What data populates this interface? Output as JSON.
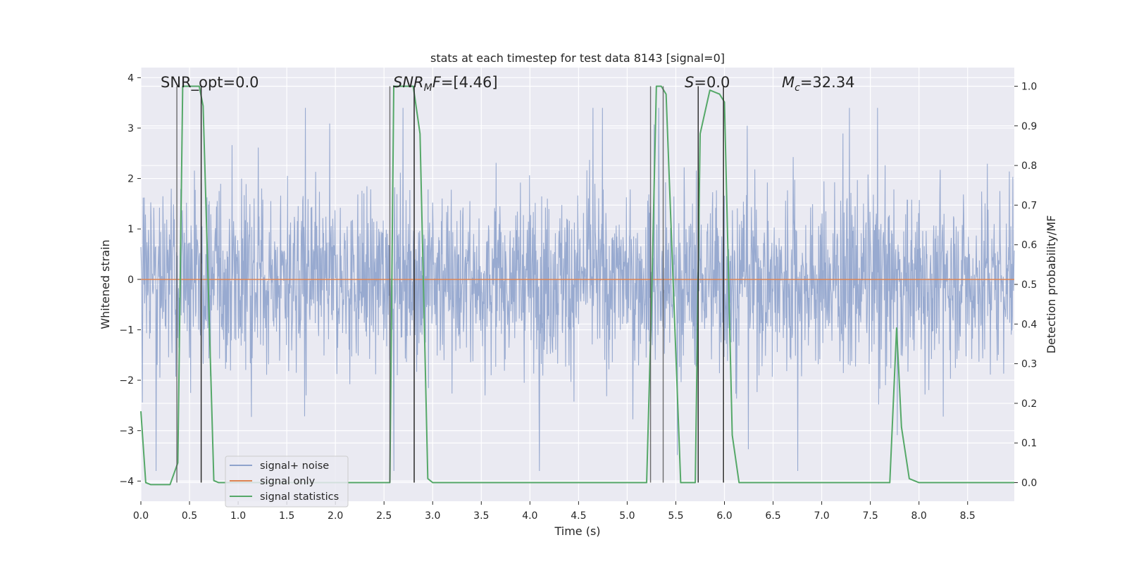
{
  "chart_data": {
    "type": "line",
    "title": "stats at each timestep for test data 8143 [signal=0]",
    "xlabel": "Time (s)",
    "ylabel_left": "Whitened strain",
    "ylabel_right": "Detection probability/MF",
    "xlim": [
      0.0,
      8.98
    ],
    "ylim_left": [
      -4.4,
      4.2
    ],
    "ylim_right": [
      -0.047,
      1.047
    ],
    "x_ticks": [
      "0.0",
      "0.5",
      "1.0",
      "1.5",
      "2.0",
      "2.5",
      "3.0",
      "3.5",
      "4.0",
      "4.5",
      "5.0",
      "5.5",
      "6.0",
      "6.5",
      "7.0",
      "7.5",
      "8.0",
      "8.5"
    ],
    "y_ticks_left": [
      "−4",
      "−3",
      "−2",
      "−1",
      "0",
      "1",
      "2",
      "3",
      "4"
    ],
    "y_ticks_right": [
      "0.0",
      "0.1",
      "0.2",
      "0.3",
      "0.4",
      "0.5",
      "0.6",
      "0.7",
      "0.8",
      "0.9",
      "1.0"
    ],
    "grid": true,
    "legend_placement": "lower-left",
    "annotations": [
      {
        "id": "snr_opt",
        "text": "SNR_opt=0.0"
      },
      {
        "id": "snr_mf",
        "text": "SNR_MF=[4.46]"
      },
      {
        "id": "s",
        "text": "S=0.0"
      },
      {
        "id": "mc",
        "text": "M_c=32.34"
      }
    ],
    "series": [
      {
        "name": "signal+ noise",
        "axis": "left",
        "color": "#8fa3cc",
        "kind": "noise",
        "approx_envelope": [
          -3.8,
          3.4
        ]
      },
      {
        "name": "signal only",
        "axis": "left",
        "color": "#dd8452",
        "x": [
          0.0,
          8.98
        ],
        "y": [
          0.0,
          0.0
        ]
      },
      {
        "name": "signal statistics",
        "axis": "right",
        "color": "#55a868",
        "x": [
          0.0,
          0.05,
          0.1,
          0.3,
          0.38,
          0.43,
          0.6,
          0.64,
          0.75,
          0.8,
          2.56,
          2.6,
          2.8,
          2.87,
          2.95,
          3.0,
          4.6,
          5.2,
          5.25,
          5.3,
          5.35,
          5.4,
          5.55,
          5.6,
          5.7,
          5.75,
          5.85,
          5.95,
          6.0,
          6.08,
          6.15,
          6.5,
          7.0,
          7.7,
          7.77,
          7.82,
          7.9,
          8.0,
          8.98
        ],
        "y": [
          0.18,
          0.0,
          -0.005,
          -0.005,
          0.05,
          1.0,
          1.0,
          0.95,
          0.005,
          0.0,
          0.0,
          1.0,
          1.0,
          0.88,
          0.01,
          0.0,
          0.0,
          0.0,
          0.45,
          1.0,
          1.0,
          0.98,
          0.0,
          0.0,
          0.0,
          0.88,
          0.99,
          0.98,
          0.96,
          0.12,
          0.0,
          0.0,
          0.0,
          0.0,
          0.39,
          0.14,
          0.01,
          0.0,
          0.0
        ]
      }
    ],
    "vertical_markers": [
      {
        "color": "#555555",
        "x": [
          0.37,
          0.62,
          2.56,
          2.81,
          5.24,
          5.37,
          5.73,
          5.99
        ]
      },
      {
        "color": "#222222",
        "x": [
          0.62,
          2.81,
          5.73,
          5.99
        ]
      }
    ]
  }
}
